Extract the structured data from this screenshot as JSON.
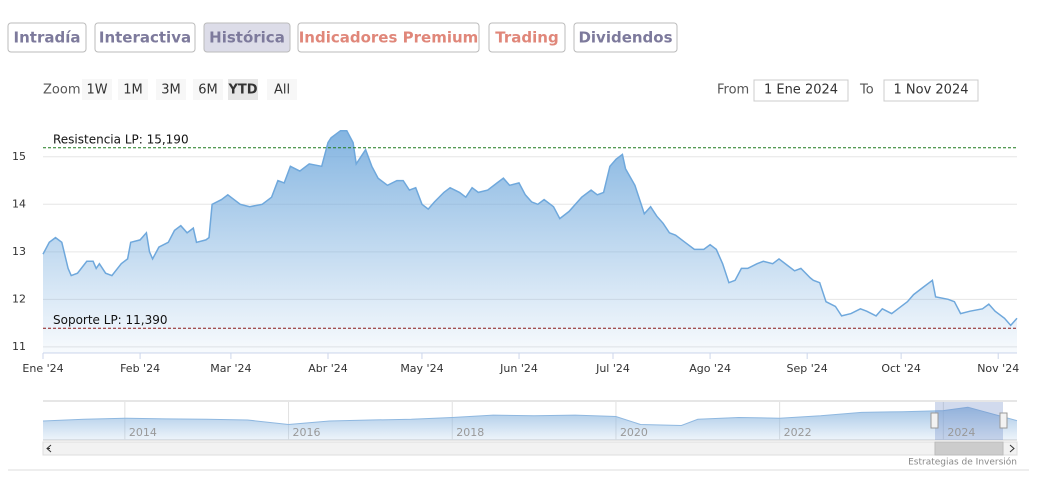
{
  "tabs": [
    "Intradía",
    "Interactiva",
    "Histórica",
    "Indicadores Premium",
    "Trading",
    "Dividendos"
  ],
  "zoom": {
    "label": "Zoom",
    "buttons": [
      "1W",
      "1M",
      "3M",
      "6M",
      "YTD",
      "All"
    ]
  },
  "range": {
    "from_label": "From",
    "from": "1 Ene 2024",
    "to_label": "To",
    "to": "1 Nov 2024"
  },
  "credit": "Estrategias de Inversión",
  "chart_data": [
    {
      "type": "area",
      "color": "#6fa8dc",
      "x": [
        0,
        2,
        4,
        6,
        8,
        9,
        11,
        14,
        16,
        17,
        18,
        20,
        22,
        25,
        27,
        28,
        31,
        33,
        34,
        35,
        37,
        40,
        42,
        44,
        46,
        48,
        49,
        52,
        53,
        54,
        57,
        59,
        60,
        63,
        66,
        70,
        73,
        75,
        77,
        79,
        82,
        85,
        89,
        91,
        92,
        95,
        97,
        99,
        100,
        103,
        105,
        107,
        110,
        113,
        115,
        117,
        119,
        121,
        123,
        125,
        128,
        130,
        133,
        135,
        137,
        139,
        142,
        145,
        147,
        149,
        152,
        154,
        156,
        158,
        160,
        163,
        165,
        168,
        170,
        172,
        175,
        177,
        179,
        181,
        183,
        185,
        186,
        189,
        191,
        192,
        194,
        196,
        198,
        200,
        202,
        205,
        208,
        211,
        213,
        215,
        217,
        219,
        221,
        223,
        225,
        228,
        230,
        233,
        235,
        238,
        240,
        242,
        245,
        246,
        248,
        250,
        253,
        255,
        258,
        261,
        263,
        266,
        268,
        271,
        273,
        276,
        278,
        281,
        284,
        285,
        289,
        291,
        293,
        296,
        300,
        302,
        304,
        307,
        309,
        311
      ],
      "values": [
        12.95,
        13.2,
        13.3,
        13.2,
        12.65,
        12.5,
        12.55,
        12.8,
        12.8,
        12.65,
        12.75,
        12.55,
        12.5,
        12.75,
        12.85,
        13.2,
        13.25,
        13.4,
        13.0,
        12.85,
        13.1,
        13.2,
        13.45,
        13.55,
        13.4,
        13.5,
        13.2,
        13.25,
        13.3,
        14.0,
        14.1,
        14.2,
        14.15,
        14.0,
        13.95,
        14.0,
        14.15,
        14.5,
        14.45,
        14.8,
        14.7,
        14.85,
        14.8,
        15.3,
        15.4,
        15.55,
        15.55,
        15.3,
        14.85,
        15.15,
        14.8,
        14.55,
        14.4,
        14.5,
        14.5,
        14.3,
        14.35,
        14.0,
        13.9,
        14.05,
        14.25,
        14.35,
        14.25,
        14.15,
        14.35,
        14.25,
        14.3,
        14.45,
        14.55,
        14.4,
        14.45,
        14.2,
        14.05,
        14.0,
        14.1,
        13.95,
        13.7,
        13.85,
        14.0,
        14.15,
        14.3,
        14.2,
        14.25,
        14.8,
        14.95,
        15.05,
        14.75,
        14.4,
        14.0,
        13.8,
        13.95,
        13.75,
        13.6,
        13.4,
        13.35,
        13.2,
        13.05,
        13.05,
        13.15,
        13.05,
        12.75,
        12.35,
        12.4,
        12.65,
        12.65,
        12.75,
        12.8,
        12.75,
        12.85,
        12.7,
        12.6,
        12.65,
        12.45,
        12.4,
        12.35,
        11.95,
        11.85,
        11.65,
        11.7,
        11.8,
        11.75,
        11.65,
        11.8,
        11.7,
        11.8,
        11.95,
        12.1,
        12.25,
        12.4,
        12.05,
        12.0,
        11.95,
        11.7,
        11.75,
        11.8,
        11.9,
        11.75,
        11.6,
        11.45,
        11.6
      ],
      "xlim": [
        0,
        311
      ],
      "xticks": [
        {
          "value": 0,
          "label": "Ene '24"
        },
        {
          "value": 31,
          "label": "Feb '24"
        },
        {
          "value": 60,
          "label": "Mar '24"
        },
        {
          "value": 91,
          "label": "Abr '24"
        },
        {
          "value": 121,
          "label": "May '24"
        },
        {
          "value": 152,
          "label": "Jun '24"
        },
        {
          "value": 182,
          "label": "Jul '24"
        },
        {
          "value": 213,
          "label": "Ago '24"
        },
        {
          "value": 244,
          "label": "Sep '24"
        },
        {
          "value": 274,
          "label": "Oct '24"
        },
        {
          "value": 305,
          "label": "Nov '24"
        }
      ],
      "ylim": [
        10.87,
        15.88
      ],
      "yticks": [
        11,
        12,
        13,
        14,
        15
      ],
      "grid": true,
      "lines": [
        {
          "label": "Resistencia LP: 15,190",
          "value": 15.19,
          "color": "#1f7a1f"
        },
        {
          "label": "Soporte LP: 11,390",
          "value": 11.39,
          "color": "#8b1a1a"
        }
      ]
    },
    {
      "type": "area",
      "color": "#8fb8e0",
      "x": [
        2013.0,
        2013.5,
        2014.0,
        2014.5,
        2015.0,
        2015.5,
        2016.0,
        2016.5,
        2017.0,
        2017.5,
        2018.0,
        2018.5,
        2019.0,
        2019.5,
        2020.0,
        2020.3,
        2020.8,
        2021.0,
        2021.5,
        2022.0,
        2022.5,
        2023.0,
        2023.5,
        2024.0,
        2024.3,
        2024.9
      ],
      "values": [
        11.5,
        12.0,
        12.3,
        12.1,
        12.0,
        11.8,
        10.5,
        11.5,
        11.8,
        12.0,
        12.5,
        13.2,
        13.0,
        13.2,
        12.8,
        10.5,
        10.2,
        12.0,
        12.5,
        12.3,
        13.0,
        14.0,
        14.2,
        14.5,
        15.5,
        11.6
      ],
      "xlim": [
        2013.0,
        2024.9
      ],
      "xticks": [
        2014,
        2016,
        2018,
        2020,
        2022,
        2024
      ],
      "ylim": [
        6,
        17
      ]
    }
  ]
}
